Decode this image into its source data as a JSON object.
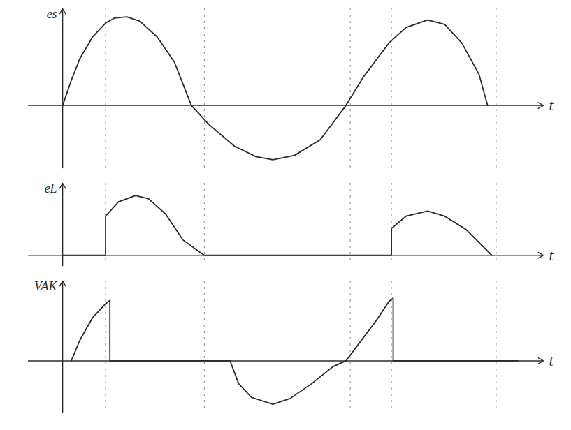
{
  "chart_data": [
    {
      "type": "line",
      "ylabel": "es",
      "xlabel": "t",
      "color": "#2b2b2b",
      "tick_labels": false,
      "xlim": [
        -40,
        560
      ],
      "ylim": [
        -100,
        155
      ],
      "xticks": [],
      "yticks": [],
      "guide_x": [
        50,
        165,
        335,
        383,
        505
      ],
      "x": [
        0,
        10,
        20,
        35,
        50,
        60,
        75,
        90,
        110,
        130,
        150,
        170,
        200,
        225,
        245,
        270,
        300,
        330,
        350,
        380,
        400,
        425,
        445,
        465,
        485,
        495
      ],
      "values": [
        0,
        40,
        75,
        110,
        132,
        140,
        142,
        135,
        110,
        70,
        0,
        -30,
        -65,
        -82,
        -87,
        -80,
        -55,
        0,
        45,
        100,
        125,
        137,
        130,
        100,
        50,
        0
      ]
    },
    {
      "type": "line",
      "ylabel": "eL",
      "xlabel": "t",
      "color": "#2b2b2b",
      "tick_labels": false,
      "xlim": [
        -40,
        560
      ],
      "ylim": [
        -10,
        70
      ],
      "xticks": [],
      "yticks": [],
      "guide_x": [
        50,
        165,
        335,
        383,
        505
      ],
      "x": [
        0,
        50,
        50,
        65,
        85,
        100,
        120,
        140,
        165,
        383,
        383,
        400,
        425,
        445,
        470,
        500
      ],
      "values": [
        0,
        0,
        38,
        52,
        58,
        55,
        40,
        15,
        0,
        0,
        26,
        38,
        43,
        38,
        25,
        0
      ]
    },
    {
      "type": "line",
      "ylabel": "VAK",
      "xlabel": "t",
      "color": "#2b2b2b",
      "tick_labels": false,
      "xlim": [
        -40,
        560
      ],
      "ylim": [
        -45,
        70
      ],
      "xticks": [],
      "yticks": [],
      "guide_x": [
        50,
        165,
        335,
        383,
        505
      ],
      "x": [
        10,
        20,
        35,
        50,
        55,
        55,
        195,
        205,
        220,
        245,
        265,
        290,
        315,
        330,
        345,
        365,
        380,
        385,
        385,
        530
      ],
      "values": [
        0,
        18,
        38,
        50,
        53,
        0,
        0,
        -20,
        -32,
        -38,
        -33,
        -20,
        -5,
        0,
        15,
        35,
        52,
        55,
        0,
        0
      ]
    }
  ]
}
